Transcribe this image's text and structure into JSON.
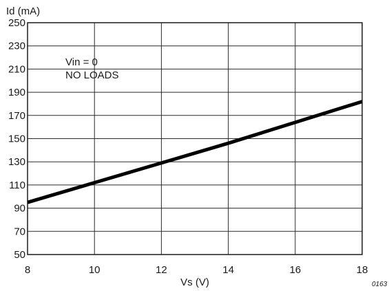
{
  "chart_data": {
    "type": "line",
    "title": "",
    "ylabel": "Id (mA)",
    "xlabel": "Vs (V)",
    "xlim": [
      8,
      18
    ],
    "ylim": [
      50,
      250
    ],
    "xticks": [
      8,
      10,
      12,
      14,
      16,
      18
    ],
    "yticks": [
      50,
      70,
      90,
      110,
      130,
      150,
      170,
      190,
      210,
      230,
      250
    ],
    "grid": true,
    "series": [
      {
        "x": [
          8,
          10,
          12,
          14,
          16,
          18
        ],
        "y": [
          95,
          112,
          129,
          146,
          164,
          182
        ]
      }
    ],
    "annotations": [
      "Vin = 0",
      "NO LOADS"
    ],
    "figure_code": "0163"
  },
  "colors": {
    "line": "#000000",
    "grid": "#2b2b2b",
    "text": "#1a1a1a"
  }
}
